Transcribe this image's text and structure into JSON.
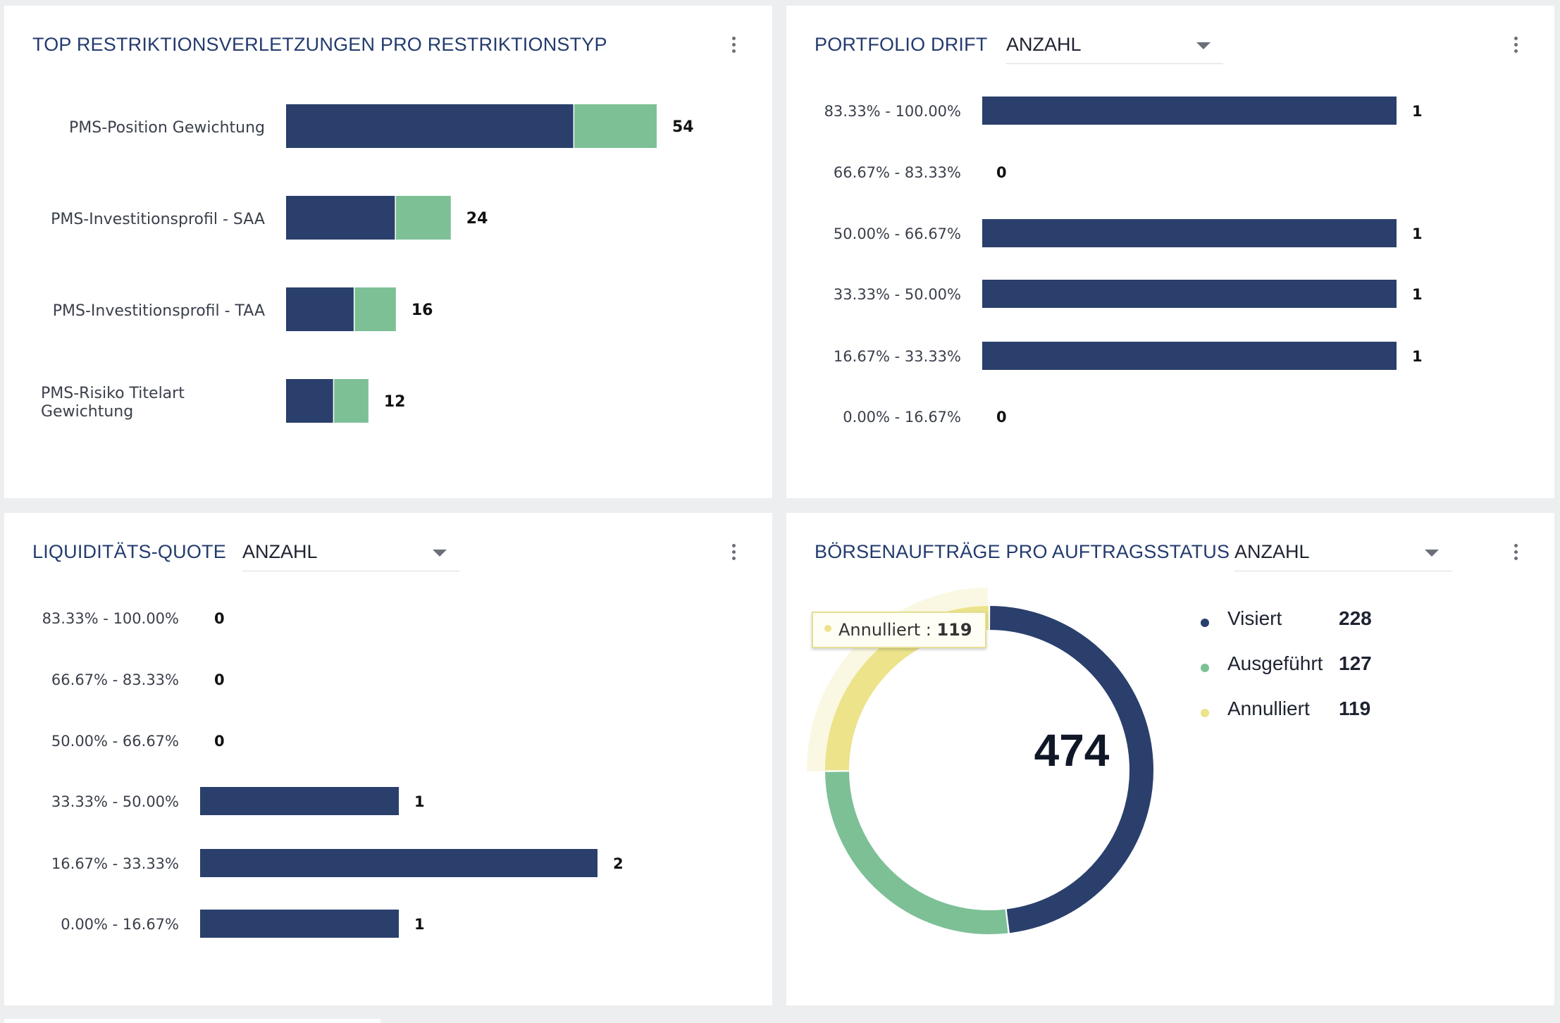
{
  "colors": {
    "navy": "#2a3f6c",
    "green": "#7dc096",
    "yellow": "#ece38a",
    "text_dark": "#1d2330"
  },
  "panels": {
    "restrictions": {
      "title": "TOP RESTRIKTIONSVERLETZUNGEN PRO RESTRIKTIONSTYP",
      "chart_data": {
        "type": "bar",
        "orientation": "horizontal",
        "stacked": true,
        "categories": [
          [
            "PMS-Position Gewichtung"
          ],
          [
            "PMS-Investitionsprofil - SAA"
          ],
          [
            "PMS-Investitionsprofil - TAA"
          ],
          [
            "PMS-Risiko Titelart",
            "Gewichtung"
          ]
        ],
        "series": [
          {
            "name": "Navy",
            "values": [
              42,
              16,
              10,
              7
            ]
          },
          {
            "name": "Green",
            "values": [
              12,
              8,
              6,
              5
            ]
          }
        ],
        "totals": [
          "54",
          "24",
          "16",
          "12"
        ],
        "xlim": [
          0,
          54
        ]
      }
    },
    "portfolio_drift": {
      "title": "PORTFOLIO DRIFT",
      "dropdown_value": "ANZAHL",
      "chart_data": {
        "type": "bar",
        "orientation": "horizontal",
        "categories": [
          "83.33% - 100.00%",
          "66.67% - 83.33%",
          "50.00% - 66.67%",
          "33.33% - 50.00%",
          "16.67% - 33.33%",
          "0.00% - 16.67%"
        ],
        "values": [
          1,
          0,
          1,
          1,
          1,
          0
        ],
        "value_labels": [
          "1",
          "0",
          "1",
          "1",
          "1",
          "0"
        ],
        "xlim": [
          0,
          1
        ]
      }
    },
    "liquidity": {
      "title": "LIQUIDITÄTS-QUOTE",
      "dropdown_value": "ANZAHL",
      "chart_data": {
        "type": "bar",
        "orientation": "horizontal",
        "categories": [
          "83.33% - 100.00%",
          "66.67% - 83.33%",
          "50.00% - 66.67%",
          "33.33% - 50.00%",
          "16.67% - 33.33%",
          "0.00% - 16.67%"
        ],
        "values": [
          0,
          0,
          0,
          1,
          2,
          1
        ],
        "value_labels": [
          "0",
          "0",
          "0",
          "1",
          "2",
          "1"
        ],
        "xlim": [
          0,
          2
        ]
      }
    },
    "orders": {
      "title": "BÖRSENAUFTRÄGE PRO AUFTRAGSSTATUS",
      "dropdown_value": "ANZAHL",
      "total": "474",
      "tooltip": {
        "label": "Annulliert :",
        "value": "119"
      },
      "chart_data": {
        "type": "pie",
        "donut": true,
        "categories": [
          "Visiert",
          "Ausgeführt",
          "Annulliert"
        ],
        "values": [
          228,
          127,
          119
        ],
        "value_labels": [
          "228",
          "127",
          "119"
        ],
        "highlighted": "Annulliert"
      }
    }
  }
}
